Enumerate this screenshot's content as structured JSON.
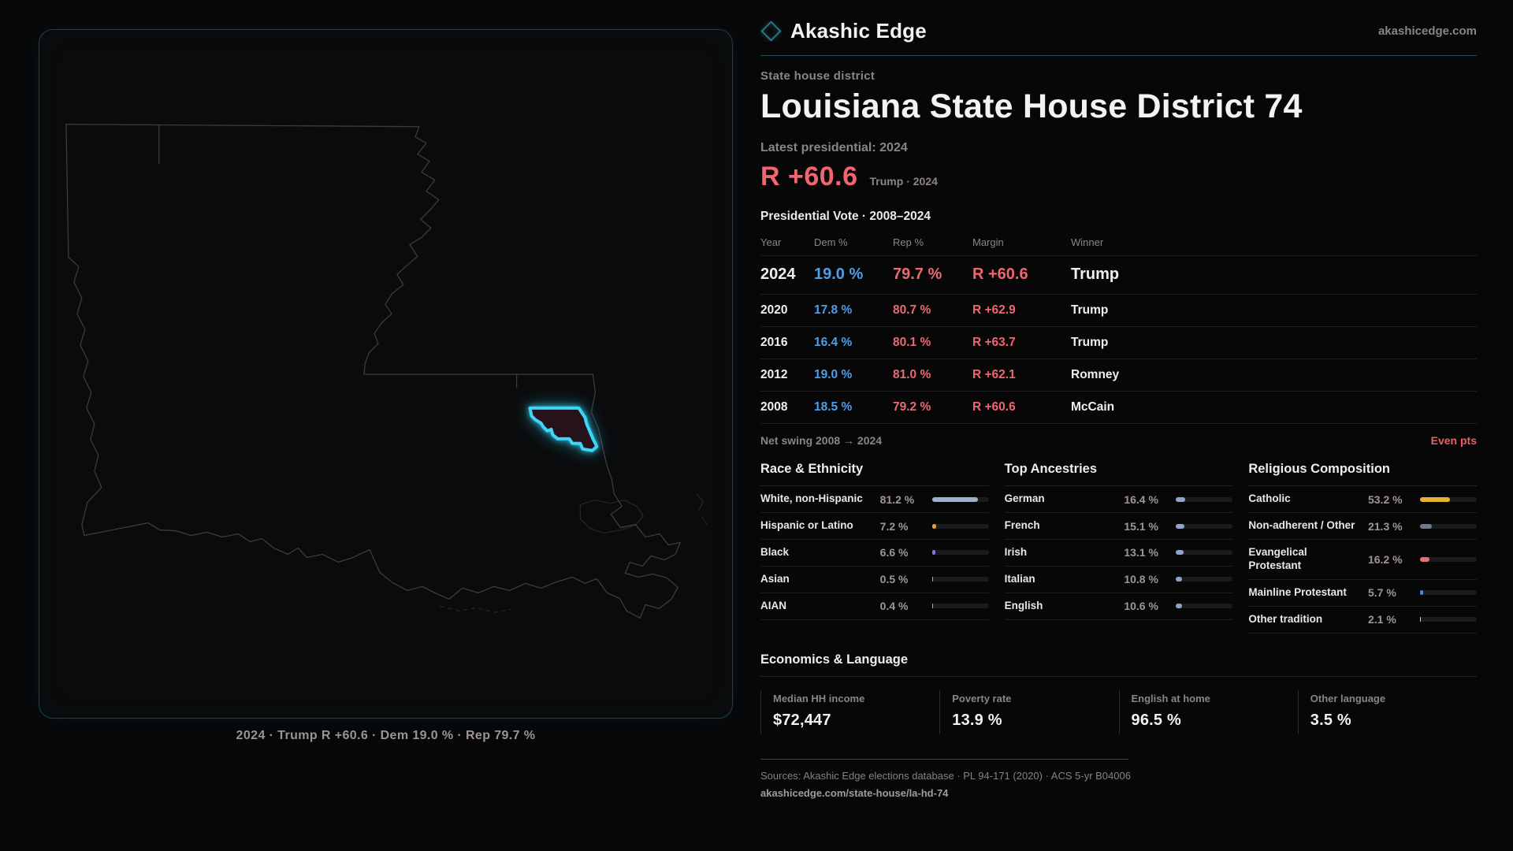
{
  "brand": {
    "name": "Akashic Edge",
    "site": "akashicedge.com",
    "accent_teal": "#1d4c58",
    "district_glow": "#3fd6f5"
  },
  "map": {
    "state": "Louisiana",
    "caption": "2024 · Trump R +60.6 · Dem 19.0 % · Rep 79.7 %"
  },
  "header": {
    "kicker": "State house district",
    "title": "Louisiana State House District 74",
    "latest_label": "Latest presidential: 2024",
    "margin_value": "R +60.6",
    "margin_context": "Trump · 2024",
    "margin_color": "#f0666f"
  },
  "presidential": {
    "section_title": "Presidential Vote · 2008–2024",
    "columns": {
      "year": "Year",
      "dem": "Dem %",
      "rep": "Rep %",
      "margin": "Margin",
      "winner": "Winner"
    },
    "rows": [
      {
        "year": "2024",
        "dem": "19.0 %",
        "rep": "79.7 %",
        "margin": "R +60.6",
        "winner": "Trump"
      },
      {
        "year": "2020",
        "dem": "17.8 %",
        "rep": "80.7 %",
        "margin": "R +62.9",
        "winner": "Trump"
      },
      {
        "year": "2016",
        "dem": "16.4 %",
        "rep": "80.1 %",
        "margin": "R +63.7",
        "winner": "Trump"
      },
      {
        "year": "2012",
        "dem": "19.0 %",
        "rep": "81.0 %",
        "margin": "R +62.1",
        "winner": "Romney"
      },
      {
        "year": "2008",
        "dem": "18.5 %",
        "rep": "79.2 %",
        "margin": "R +60.6",
        "winner": "McCain"
      }
    ],
    "dem_color": "#4f9ee8",
    "rep_color": "#e86a73",
    "net_swing_label": "Net swing 2008 → 2024",
    "net_swing_value": "Even pts"
  },
  "race": {
    "title": "Race & Ethnicity",
    "rows": [
      {
        "label": "White, non-Hispanic",
        "value": "81.2 %",
        "pct": 81.2,
        "color": "#9fb0c9"
      },
      {
        "label": "Hispanic or Latino",
        "value": "7.2 %",
        "pct": 7.2,
        "color": "#e8a23c"
      },
      {
        "label": "Black",
        "value": "6.6 %",
        "pct": 6.6,
        "color": "#8671e8"
      },
      {
        "label": "Asian",
        "value": "0.5 %",
        "pct": 0.5,
        "color": "#9fb0c9"
      },
      {
        "label": "AIAN",
        "value": "0.4 %",
        "pct": 0.4,
        "color": "#9fb0c9"
      }
    ]
  },
  "ancestries": {
    "title": "Top Ancestries",
    "rows": [
      {
        "label": "German",
        "value": "16.4 %",
        "pct": 16.4,
        "color": "#8ea6c6"
      },
      {
        "label": "French",
        "value": "15.1 %",
        "pct": 15.1,
        "color": "#8ea6c6"
      },
      {
        "label": "Irish",
        "value": "13.1 %",
        "pct": 13.1,
        "color": "#8ea6c6"
      },
      {
        "label": "Italian",
        "value": "10.8 %",
        "pct": 10.8,
        "color": "#8ea6c6"
      },
      {
        "label": "English",
        "value": "10.6 %",
        "pct": 10.6,
        "color": "#8ea6c6"
      }
    ]
  },
  "religion": {
    "title": "Religious Composition",
    "rows": [
      {
        "label": "Catholic",
        "value": "53.2 %",
        "pct": 53.2,
        "color": "#e2b42f"
      },
      {
        "label": "Non-adherent / Other",
        "value": "21.3 %",
        "pct": 21.3,
        "color": "#6e7a8a"
      },
      {
        "label": "Evangelical Protestant",
        "value": "16.2 %",
        "pct": 16.2,
        "color": "#e5707a"
      },
      {
        "label": "Mainline Protestant",
        "value": "5.7 %",
        "pct": 5.7,
        "color": "#3f86e8"
      },
      {
        "label": "Other tradition",
        "value": "2.1 %",
        "pct": 2.1,
        "color": "#cfcfcf"
      }
    ]
  },
  "economics": {
    "title": "Economics & Language",
    "stats": [
      {
        "label": "Median HH income",
        "value": "$72,447"
      },
      {
        "label": "Poverty rate",
        "value": "13.9 %"
      },
      {
        "label": "English at home",
        "value": "96.5 %"
      },
      {
        "label": "Other language",
        "value": "3.5 %"
      }
    ]
  },
  "footer": {
    "sources": "Sources: Akashic Edge elections database · PL 94-171 (2020) · ACS 5-yr B04006",
    "permalink": "akashicedge.com/state-house/la-hd-74"
  }
}
